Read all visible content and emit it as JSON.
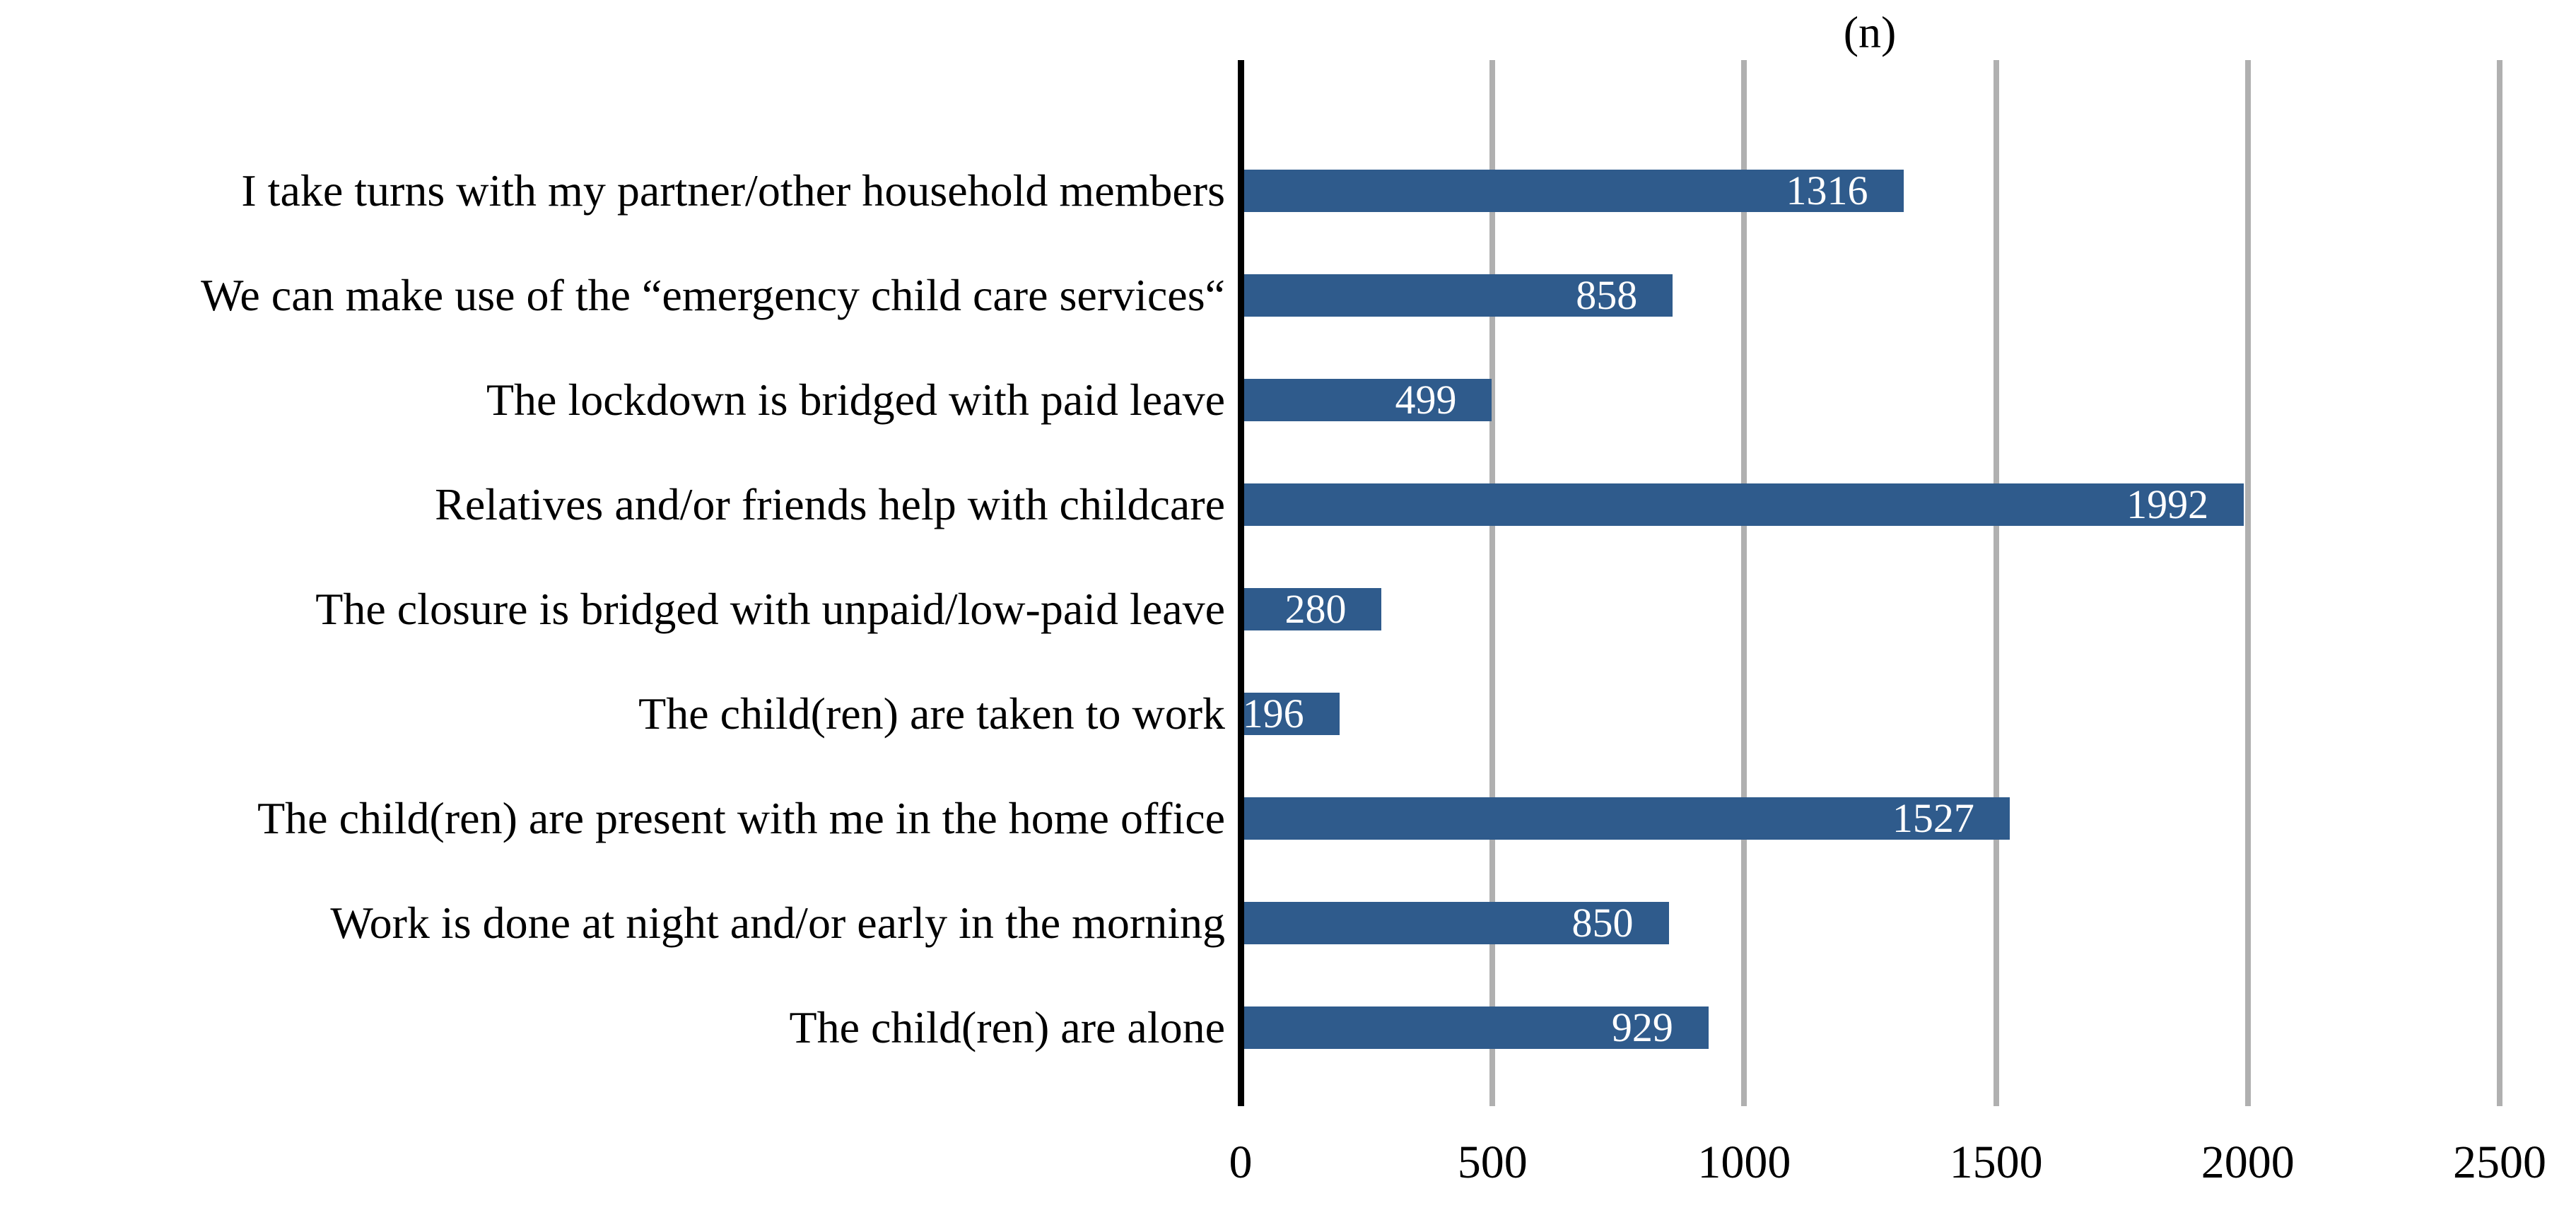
{
  "title": "(n)",
  "colors": {
    "bar": "#2F5B8C",
    "gridline": "#B0B0B0",
    "axis": "#000000",
    "value_label": "#FFFFFF",
    "text": "#000000",
    "background": "#FFFFFF"
  },
  "chart_data": {
    "type": "bar",
    "orientation": "horizontal",
    "title": "(n)",
    "categories": [
      "I take turns with my partner/other household members",
      "We can make use of the “emergency child care services“",
      "The lockdown is bridged with paid leave",
      "Relatives and/or friends help with childcare",
      "The closure is bridged with unpaid/low-paid leave",
      "The child(ren) are taken to work",
      "The child(ren) are present with me in the home office",
      "Work is done at night and/or early in the morning",
      "The child(ren) are alone"
    ],
    "values": [
      1316,
      858,
      499,
      1992,
      280,
      196,
      1527,
      850,
      929
    ],
    "xlabel": "",
    "ylabel": "",
    "xlim": [
      0,
      2500
    ],
    "xticks": [
      0,
      500,
      1000,
      1500,
      2000,
      2500
    ],
    "grid": true,
    "value_label_position": "inside-end",
    "legend": "none"
  }
}
